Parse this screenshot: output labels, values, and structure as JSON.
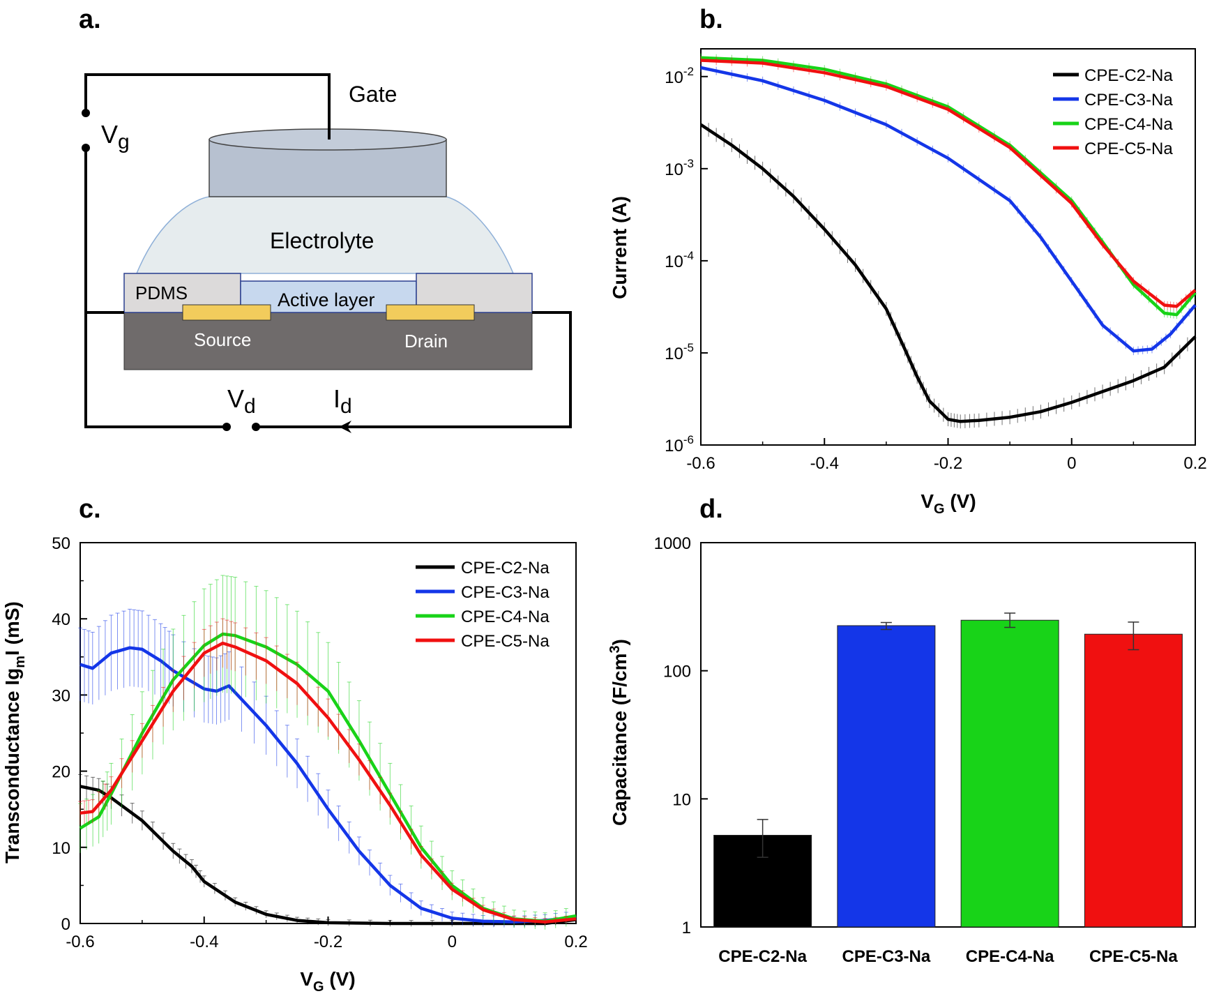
{
  "panels": {
    "a": {
      "label": "a."
    },
    "b": {
      "label": "b."
    },
    "c": {
      "label": "c."
    },
    "d": {
      "label": "d."
    }
  },
  "schematic": {
    "gate": "Gate",
    "vg_main": "V",
    "vg_sub": "g",
    "electrolyte": "Electrolyte",
    "pdms": "PDMS",
    "active_layer": "Active layer",
    "source": "Source",
    "drain": "Drain",
    "vd_main": "V",
    "vd_sub": "d",
    "id_main": "I",
    "id_sub": "d",
    "colors": {
      "gate": "#b7c1d0",
      "electrolyte": "#e6ecee",
      "active": "#c7d8ee",
      "substrate": "#6f6b6b",
      "electrode": "#f2cc5c"
    }
  },
  "legend": [
    "CPE-C2-Na",
    "CPE-C3-Na",
    "CPE-C4-Na",
    "CPE-C5-Na"
  ],
  "series_colors": [
    "#000000",
    "#1436e8",
    "#18d318",
    "#f01010"
  ],
  "chart_data": [
    {
      "type": "line",
      "panel": "b",
      "xlabel_main": "V",
      "xlabel_sub": "G",
      "xlabel_unit": " (V)",
      "ylabel": "Current (A)",
      "yscale": "log",
      "xlim": [
        -0.6,
        0.2
      ],
      "ylim": [
        1e-06,
        0.02
      ],
      "xticks": [
        "-0.6",
        "-0.4",
        "-0.2",
        "0",
        "0.2"
      ],
      "yticks": [
        {
          "value": 1e-06,
          "base": "10",
          "exp": "-6"
        },
        {
          "value": 1e-05,
          "base": "10",
          "exp": "-5"
        },
        {
          "value": 0.0001,
          "base": "10",
          "exp": "-4"
        },
        {
          "value": 0.001,
          "base": "10",
          "exp": "-3"
        },
        {
          "value": 0.01,
          "base": "10",
          "exp": "-2"
        }
      ],
      "legend_position": "top-right",
      "series": [
        {
          "name": "CPE-C2-Na",
          "x": [
            -0.6,
            -0.55,
            -0.5,
            -0.45,
            -0.4,
            -0.35,
            -0.3,
            -0.27,
            -0.25,
            -0.23,
            -0.2,
            -0.18,
            -0.15,
            -0.1,
            -0.05,
            0,
            0.05,
            0.1,
            0.15,
            0.2
          ],
          "y": [
            0.003,
            0.0018,
            0.001,
            0.0005,
            0.00022,
            9e-05,
            3e-05,
            1.1e-05,
            5.5e-06,
            3e-06,
            1.9e-06,
            1.8e-06,
            1.85e-06,
            2e-06,
            2.3e-06,
            2.9e-06,
            3.8e-06,
            5e-06,
            7e-06,
            1.5e-05
          ]
        },
        {
          "name": "CPE-C3-Na",
          "x": [
            -0.6,
            -0.5,
            -0.4,
            -0.3,
            -0.2,
            -0.1,
            -0.05,
            0,
            0.05,
            0.1,
            0.13,
            0.16,
            0.2
          ],
          "y": [
            0.0125,
            0.009,
            0.0055,
            0.003,
            0.0013,
            0.00045,
            0.00018,
            6e-05,
            2e-05,
            1.05e-05,
            1.1e-05,
            1.6e-05,
            3.3e-05
          ]
        },
        {
          "name": "CPE-C4-Na",
          "x": [
            -0.6,
            -0.5,
            -0.4,
            -0.3,
            -0.2,
            -0.1,
            0,
            0.05,
            0.1,
            0.15,
            0.17,
            0.2
          ],
          "y": [
            0.016,
            0.015,
            0.012,
            0.0083,
            0.0047,
            0.0018,
            0.00045,
            0.00016,
            5.5e-05,
            2.7e-05,
            2.6e-05,
            4.5e-05
          ]
        },
        {
          "name": "CPE-C5-Na",
          "x": [
            -0.6,
            -0.5,
            -0.4,
            -0.3,
            -0.2,
            -0.1,
            0,
            0.05,
            0.1,
            0.15,
            0.17,
            0.2
          ],
          "y": [
            0.015,
            0.014,
            0.011,
            0.0078,
            0.0044,
            0.0017,
            0.00042,
            0.00015,
            6e-05,
            3.3e-05,
            3.2e-05,
            4.8e-05
          ]
        }
      ]
    },
    {
      "type": "line",
      "panel": "c",
      "xlabel_main": "V",
      "xlabel_sub": "G",
      "xlabel_unit": " (V)",
      "ylabel_pre": "Transconductance Ig",
      "ylabel_sub": "m",
      "ylabel_post": "I (mS)",
      "xlim": [
        -0.6,
        0.2
      ],
      "ylim": [
        0,
        50
      ],
      "xticks": [
        "-0.6",
        "-0.4",
        "-0.2",
        "0",
        "0.2"
      ],
      "yticks": [
        "0",
        "10",
        "20",
        "30",
        "40",
        "50"
      ],
      "legend_position": "top-right",
      "series": [
        {
          "name": "CPE-C2-Na",
          "x": [
            -0.6,
            -0.57,
            -0.55,
            -0.5,
            -0.45,
            -0.42,
            -0.4,
            -0.35,
            -0.3,
            -0.25,
            -0.2,
            -0.1,
            0,
            0.1,
            0.15,
            0.2
          ],
          "y": [
            18,
            17.5,
            16.5,
            13.5,
            9.5,
            7.5,
            5.5,
            2.8,
            1.2,
            0.4,
            0.1,
            0,
            0,
            0,
            0,
            0.5
          ]
        },
        {
          "name": "CPE-C3-Na",
          "x": [
            -0.6,
            -0.58,
            -0.55,
            -0.52,
            -0.5,
            -0.47,
            -0.45,
            -0.4,
            -0.38,
            -0.36,
            -0.3,
            -0.25,
            -0.2,
            -0.15,
            -0.1,
            -0.05,
            0,
            0.05,
            0.1,
            0.15,
            0.2
          ],
          "y": [
            34,
            33.5,
            35.5,
            36.2,
            36,
            34.5,
            33.2,
            30.8,
            30.5,
            31.2,
            26,
            21,
            15,
            9.5,
            5,
            2,
            0.7,
            0.3,
            0.2,
            0.4,
            0.8
          ]
        },
        {
          "name": "CPE-C4-Na",
          "x": [
            -0.6,
            -0.57,
            -0.55,
            -0.5,
            -0.45,
            -0.4,
            -0.37,
            -0.35,
            -0.3,
            -0.25,
            -0.2,
            -0.15,
            -0.1,
            -0.05,
            0,
            0.05,
            0.1,
            0.15,
            0.2
          ],
          "y": [
            12.5,
            14,
            17,
            25,
            32,
            36.5,
            38,
            37.8,
            36.3,
            34,
            30.5,
            24,
            17,
            10,
            5,
            2,
            0.6,
            0.3,
            1
          ]
        },
        {
          "name": "CPE-C5-Na",
          "x": [
            -0.6,
            -0.58,
            -0.55,
            -0.5,
            -0.45,
            -0.4,
            -0.37,
            -0.35,
            -0.3,
            -0.25,
            -0.2,
            -0.15,
            -0.1,
            -0.05,
            0,
            0.05,
            0.1,
            0.15,
            0.2
          ],
          "y": [
            14.5,
            14.7,
            17.5,
            24,
            30.5,
            35.5,
            36.8,
            36.3,
            34.5,
            31.5,
            27,
            21.5,
            15.5,
            9,
            4.5,
            1.8,
            0.5,
            0.2,
            0.6
          ]
        }
      ]
    },
    {
      "type": "bar",
      "panel": "d",
      "ylabel_pre": "Capacitance (F/cm",
      "ylabel_sup": "3",
      "ylabel_post": ")",
      "yscale": "log",
      "ylim": [
        1,
        1000
      ],
      "yticks": [
        "1",
        "10",
        "100",
        "1000"
      ],
      "categories": [
        "CPE-C2-Na",
        "CPE-C3-Na",
        "CPE-C4-Na",
        "CPE-C5-Na"
      ],
      "values": [
        5.2,
        225,
        248,
        193
      ],
      "errors_low": [
        3.5,
        210,
        218,
        146
      ],
      "errors_high": [
        6.9,
        238,
        282,
        240
      ]
    }
  ]
}
